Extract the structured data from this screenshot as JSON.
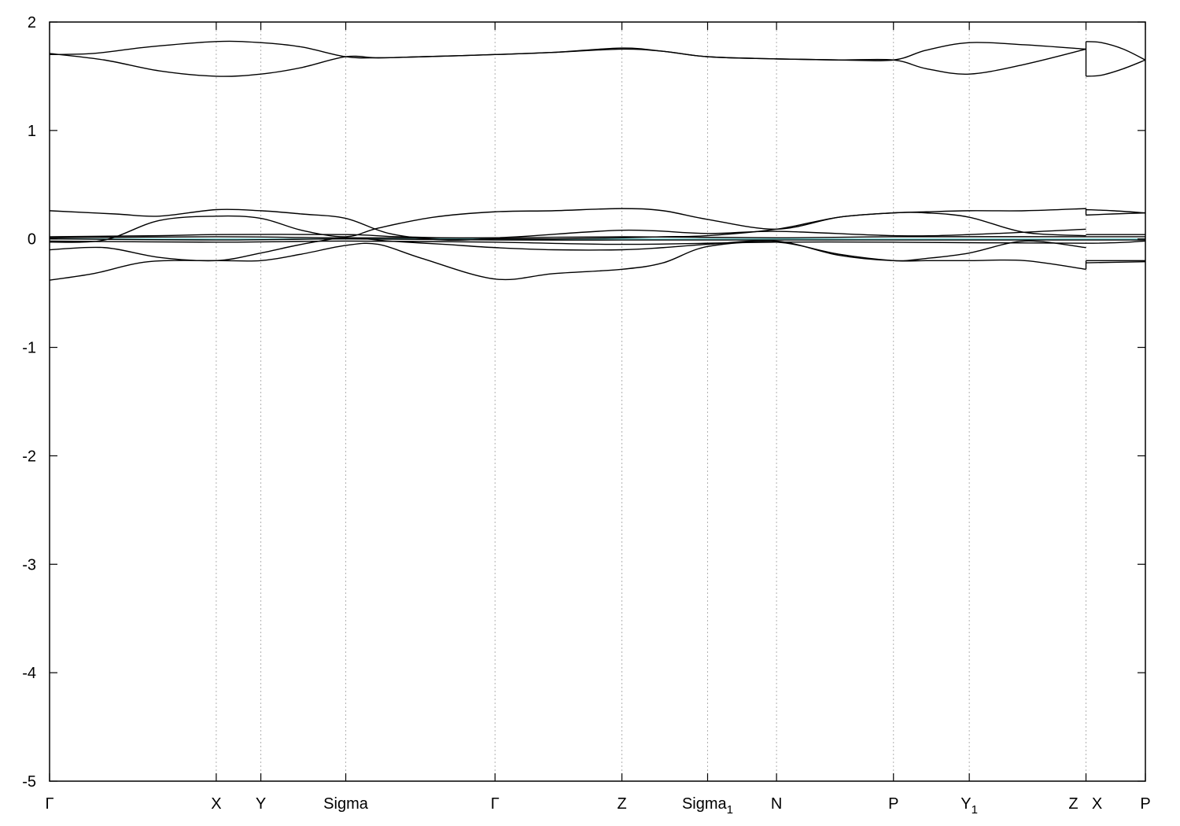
{
  "chart_data": {
    "type": "line",
    "title": "",
    "xlabel": "",
    "ylabel": "",
    "ylim": [
      -5,
      2
    ],
    "yticks": [
      -5,
      -4,
      -3,
      -2,
      -1,
      0,
      1,
      2
    ],
    "xlim": [
      0,
      10
    ],
    "grid": "vertical dotted lines at high-symmetry points",
    "kpoints": [
      {
        "x": 0.0,
        "label": "Γ",
        "sub": ""
      },
      {
        "x": 1.521,
        "label": "X",
        "sub": ""
      },
      {
        "x": 1.928,
        "label": "Y",
        "sub": ""
      },
      {
        "x": 2.703,
        "label": "Sigma",
        "sub": ""
      },
      {
        "x": 4.065,
        "label": "Γ",
        "sub": ""
      },
      {
        "x": 5.223,
        "label": "Z",
        "sub": ""
      },
      {
        "x": 6.005,
        "label": "Sigma",
        "sub": "1"
      },
      {
        "x": 6.634,
        "label": "N",
        "sub": ""
      },
      {
        "x": 7.701,
        "label": "P",
        "sub": ""
      },
      {
        "x": 8.393,
        "label": "Y",
        "sub": "1"
      },
      {
        "x": 9.458,
        "label": "Z",
        "sub": ""
      },
      {
        "x": 9.458,
        "label": "X",
        "sub": ""
      },
      {
        "x": 10.0,
        "label": "P",
        "sub": ""
      }
    ],
    "colors": {
      "bands": "#000000",
      "fermi": "#7fd6d6",
      "grid": "#b0b0b0"
    },
    "series": [
      {
        "x": [
          0,
          0.4,
          0.9,
          1.521,
          1.928,
          2.3,
          2.703,
          3.0,
          3.4,
          4.065,
          4.6,
          5.223,
          5.6,
          6.005,
          6.634,
          7.2,
          7.701,
          8.0,
          8.393,
          8.9,
          9.458
        ],
        "y": [
          1.7,
          1.71,
          1.77,
          1.82,
          1.81,
          1.77,
          1.68,
          1.67,
          1.68,
          1.7,
          1.72,
          1.75,
          1.73,
          1.68,
          1.66,
          1.65,
          1.65,
          1.74,
          1.81,
          1.79,
          1.75
        ]
      },
      {
        "x": [
          0,
          0.5,
          1.0,
          1.521,
          1.928,
          2.3,
          2.703,
          3.0,
          3.4,
          4.065,
          4.6,
          5.223,
          5.6,
          6.005,
          6.634,
          7.2,
          7.701,
          8.0,
          8.393,
          8.9,
          9.458
        ],
        "y": [
          1.71,
          1.65,
          1.55,
          1.5,
          1.52,
          1.58,
          1.68,
          1.67,
          1.68,
          1.7,
          1.72,
          1.76,
          1.73,
          1.68,
          1.66,
          1.65,
          1.65,
          1.57,
          1.52,
          1.61,
          1.75
        ]
      },
      {
        "x": [
          9.458,
          9.6,
          9.8,
          10.0
        ],
        "y": [
          1.82,
          1.81,
          1.75,
          1.65
        ]
      },
      {
        "x": [
          9.458,
          9.6,
          9.8,
          10.0
        ],
        "y": [
          1.5,
          1.51,
          1.57,
          1.65
        ]
      },
      {
        "x": [
          0,
          0.6,
          1.0,
          1.521,
          1.928,
          2.3,
          2.703,
          3.1,
          3.6,
          4.065,
          4.6,
          5.223,
          5.6,
          6.005,
          6.634,
          7.2,
          7.701,
          8.0,
          8.393,
          8.9,
          9.458
        ],
        "y": [
          0.26,
          0.23,
          0.21,
          0.27,
          0.26,
          0.23,
          0.19,
          0.05,
          -0.01,
          0.0,
          0.0,
          0.01,
          0.02,
          0.03,
          0.09,
          0.2,
          0.24,
          0.24,
          0.2,
          0.06,
          0.03
        ]
      },
      {
        "x": [
          0,
          0.4,
          0.9,
          1.521,
          1.928,
          2.3,
          2.703,
          3.0,
          3.4,
          4.065,
          4.6,
          5.223,
          5.6,
          6.005,
          6.634,
          7.2,
          7.701,
          8.0,
          8.393,
          8.9,
          9.458
        ],
        "y": [
          -0.38,
          -0.32,
          -0.21,
          -0.2,
          -0.2,
          -0.14,
          -0.06,
          -0.05,
          -0.18,
          -0.37,
          -0.32,
          -0.28,
          -0.22,
          -0.07,
          -0.03,
          -0.14,
          -0.2,
          -0.2,
          -0.2,
          -0.2,
          -0.28
        ]
      },
      {
        "x": [
          0,
          0.5,
          1.0,
          1.521,
          1.928,
          2.3,
          2.703,
          3.0,
          3.5,
          4.065,
          4.6,
          5.223,
          5.6,
          6.005,
          6.634,
          7.2,
          7.701,
          8.0,
          8.393,
          8.9,
          9.458
        ],
        "y": [
          -0.03,
          -0.01,
          0.17,
          0.21,
          0.19,
          0.08,
          0.02,
          0.1,
          0.2,
          0.25,
          0.26,
          0.28,
          0.26,
          0.18,
          0.09,
          0.2,
          0.24,
          0.25,
          0.26,
          0.26,
          0.28
        ]
      },
      {
        "x": [
          0,
          0.5,
          1.0,
          1.521,
          1.928,
          2.3,
          2.703,
          3.1,
          3.6,
          4.065,
          4.6,
          5.223,
          5.6,
          6.005,
          6.634,
          7.2,
          7.701,
          8.0,
          8.393,
          8.9,
          9.458
        ],
        "y": [
          -0.1,
          -0.08,
          -0.17,
          -0.2,
          -0.13,
          -0.05,
          0.01,
          -0.02,
          -0.05,
          -0.08,
          -0.1,
          -0.1,
          -0.08,
          -0.05,
          -0.02,
          -0.15,
          -0.2,
          -0.18,
          -0.13,
          -0.02,
          -0.08
        ]
      },
      {
        "x": [
          0,
          1.0,
          1.521,
          2.703,
          3.2,
          4.065,
          5.223,
          6.005,
          6.634,
          7.701,
          8.393,
          9.458
        ],
        "y": [
          0.02,
          0.03,
          0.04,
          0.04,
          0.02,
          0.01,
          0.08,
          0.05,
          0.07,
          0.03,
          0.04,
          0.09
        ]
      },
      {
        "x": [
          0,
          1.521,
          2.703,
          4.065,
          5.223,
          6.634,
          7.701,
          9.458,
          10.0
        ],
        "y": [
          0.01,
          0.02,
          0.01,
          0.01,
          0.02,
          0.01,
          0.02,
          0.02,
          0.02
        ]
      },
      {
        "x": [
          0,
          1.521,
          2.703,
          4.065,
          5.223,
          6.634,
          7.701,
          9.458,
          10.0
        ],
        "y": [
          0.0,
          -0.01,
          0.0,
          -0.01,
          -0.01,
          -0.01,
          -0.01,
          -0.01,
          -0.01
        ]
      },
      {
        "x": [
          0,
          1.521,
          2.703,
          4.065,
          5.223,
          6.634,
          7.701,
          9.458,
          10.0
        ],
        "y": [
          -0.02,
          -0.03,
          -0.02,
          -0.03,
          -0.05,
          -0.03,
          -0.03,
          -0.04,
          -0.02
        ]
      },
      {
        "x": [
          9.458,
          9.7,
          10.0
        ],
        "y": [
          0.22,
          0.23,
          0.24
        ]
      },
      {
        "x": [
          9.458,
          9.7,
          10.0
        ],
        "y": [
          0.27,
          0.26,
          0.24
        ]
      },
      {
        "x": [
          9.458,
          10.0
        ],
        "y": [
          -0.2,
          -0.2
        ]
      },
      {
        "x": [
          9.458,
          10.0
        ],
        "y": [
          -0.22,
          -0.21
        ]
      },
      {
        "x": [
          9.458,
          10.0
        ],
        "y": [
          0.04,
          0.04
        ]
      }
    ],
    "fermi_level": 0.0,
    "vertical_jumps": [
      {
        "x": 9.458,
        "y1": 1.5,
        "y2": 1.82
      },
      {
        "x": 9.458,
        "y1": 0.22,
        "y2": 0.28
      },
      {
        "x": 9.458,
        "y1": -0.28,
        "y2": -0.2
      }
    ]
  }
}
